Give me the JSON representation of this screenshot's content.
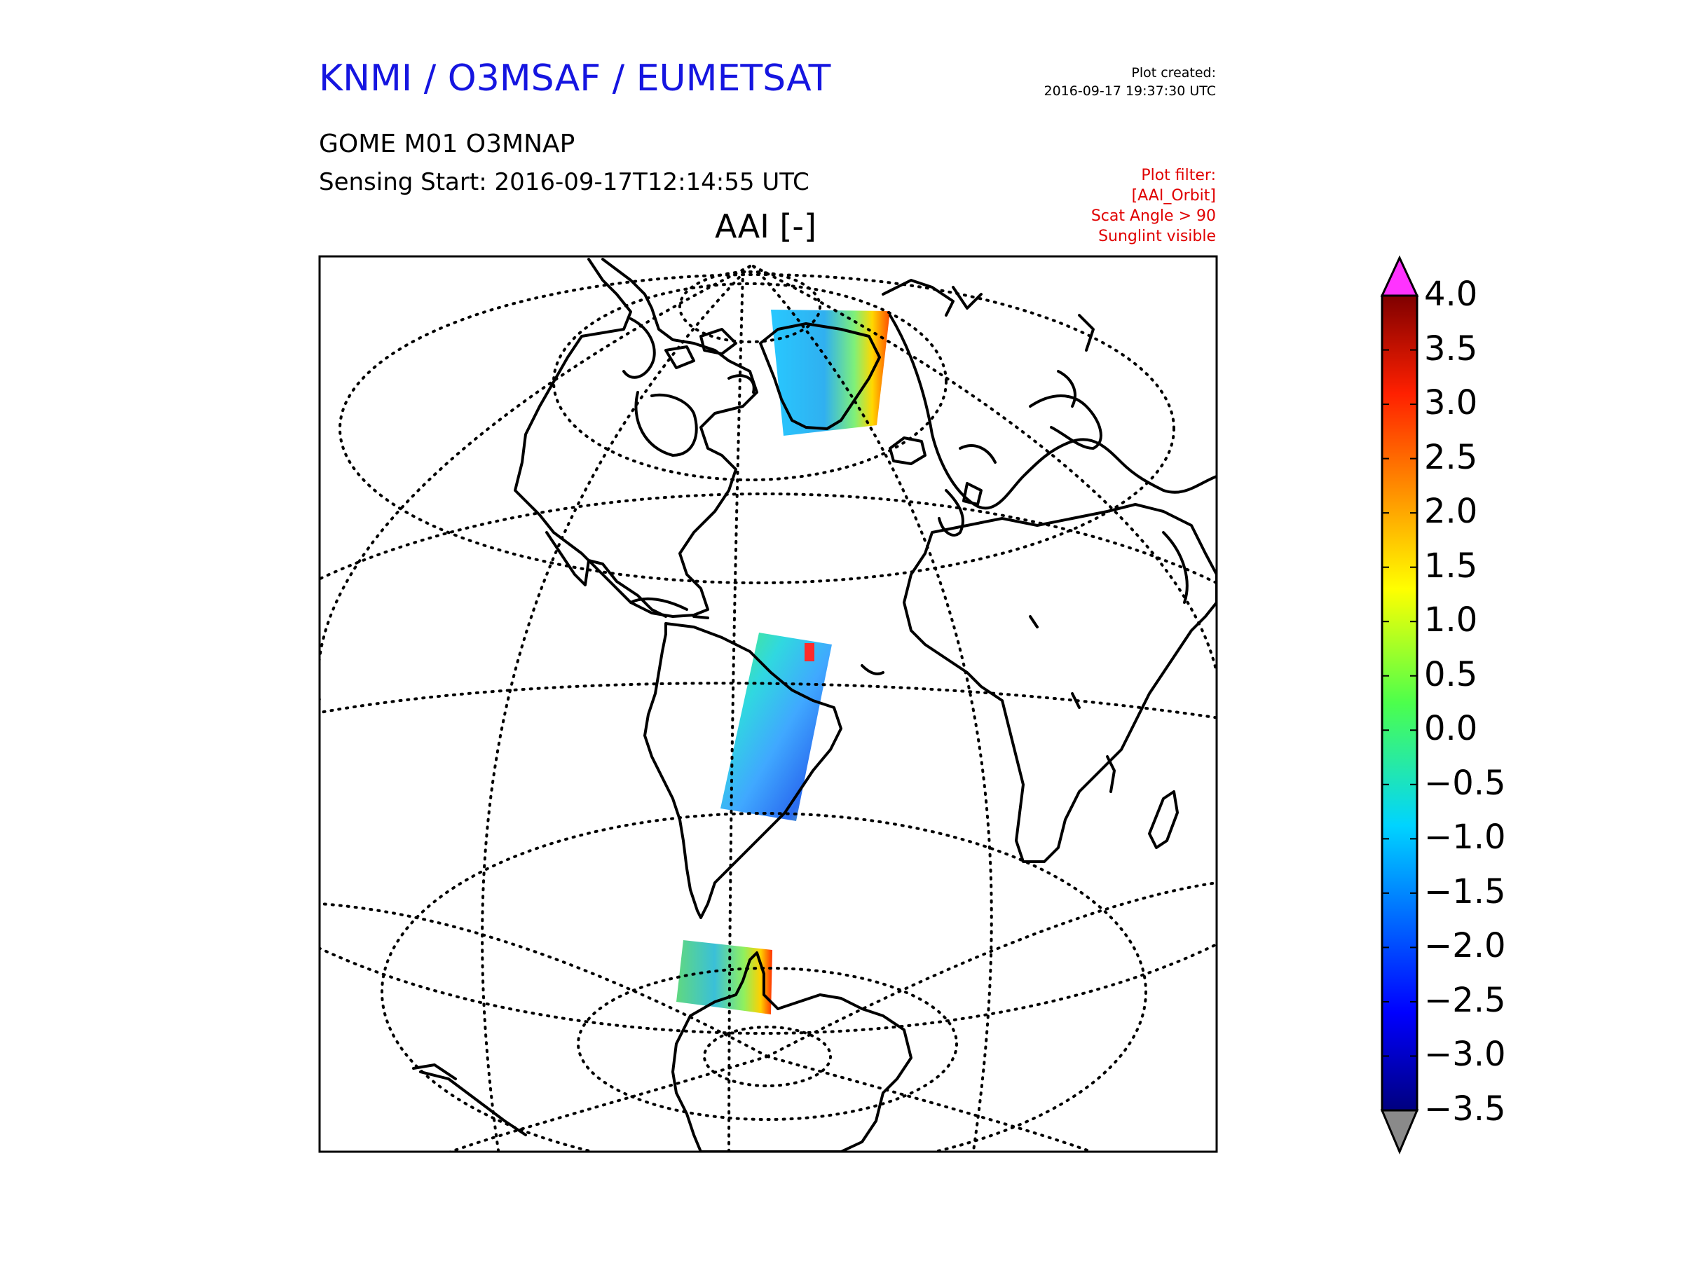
{
  "header": {
    "institution": "KNMI / O3MSAF / EUMETSAT",
    "created_label": "Plot created:",
    "created_value": "2016-09-17 19:37:30 UTC",
    "product": "GOME M01 O3MNAP",
    "sensing_start": "Sensing Start: 2016-09-17T12:14:55 UTC",
    "filter_lines": [
      "Plot filter:",
      "[AAI_Orbit]",
      "Scat Angle > 90",
      "Sunglint visible"
    ]
  },
  "map": {
    "variable_title": "AAI [-]",
    "projection": "orthographic",
    "graticule": "dotted",
    "swaths": [
      {
        "region": "Greenland / Arctic"
      },
      {
        "region": "South America / Amazon"
      },
      {
        "region": "Antarctic Peninsula"
      }
    ]
  },
  "colorbar": {
    "min": -3.5,
    "max": 4.0,
    "tick_labels": [
      "4.0",
      "3.5",
      "3.0",
      "2.5",
      "2.0",
      "1.5",
      "1.0",
      "0.5",
      "0.0",
      "−0.5",
      "−1.0",
      "−1.5",
      "−2.0",
      "−2.5",
      "−3.0",
      "−3.5"
    ],
    "tick_values": [
      4.0,
      3.5,
      3.0,
      2.5,
      2.0,
      1.5,
      1.0,
      0.5,
      0.0,
      -0.5,
      -1.0,
      -1.5,
      -2.0,
      -2.5,
      -3.0,
      -3.5
    ],
    "colormap": "jet",
    "over_color": "#ff33ff",
    "under_color": "#8a8a8a"
  }
}
